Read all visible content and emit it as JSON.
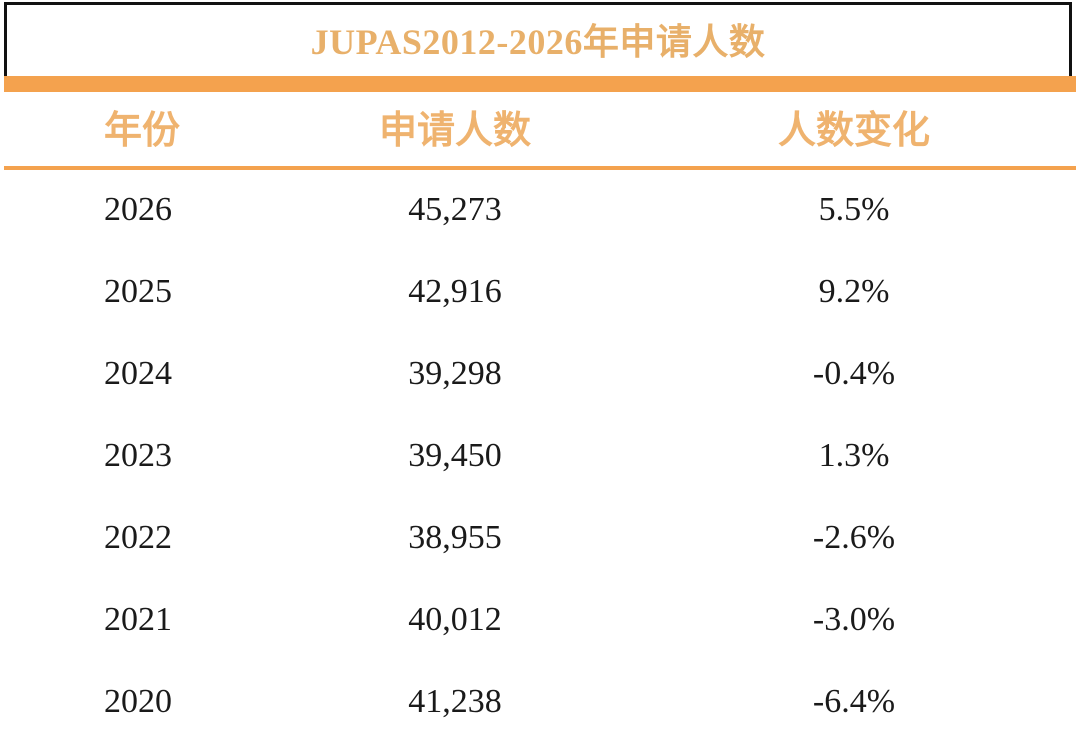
{
  "table": {
    "title": "JUPAS2012-2026年申请人数",
    "headers": {
      "year": "年份",
      "count": "申请人数",
      "change": "人数变化"
    },
    "rows": [
      {
        "year": "2026",
        "count": "45,273",
        "change": "5.5%"
      },
      {
        "year": "2025",
        "count": "42,916",
        "change": "9.2%"
      },
      {
        "year": "2024",
        "count": "39,298",
        "change": "-0.4%"
      },
      {
        "year": "2023",
        "count": "39,450",
        "change": "1.3%"
      },
      {
        "year": "2022",
        "count": "38,955",
        "change": "-2.6%"
      },
      {
        "year": "2021",
        "count": "40,012",
        "change": "-3.0%"
      },
      {
        "year": "2020",
        "count": "41,238",
        "change": "-6.4%"
      }
    ]
  },
  "colors": {
    "accent": "#f4a24e",
    "title_text": "#e8b06a",
    "header_text": "#efb36f",
    "body_text": "#1a1a1a",
    "border": "#111111"
  }
}
